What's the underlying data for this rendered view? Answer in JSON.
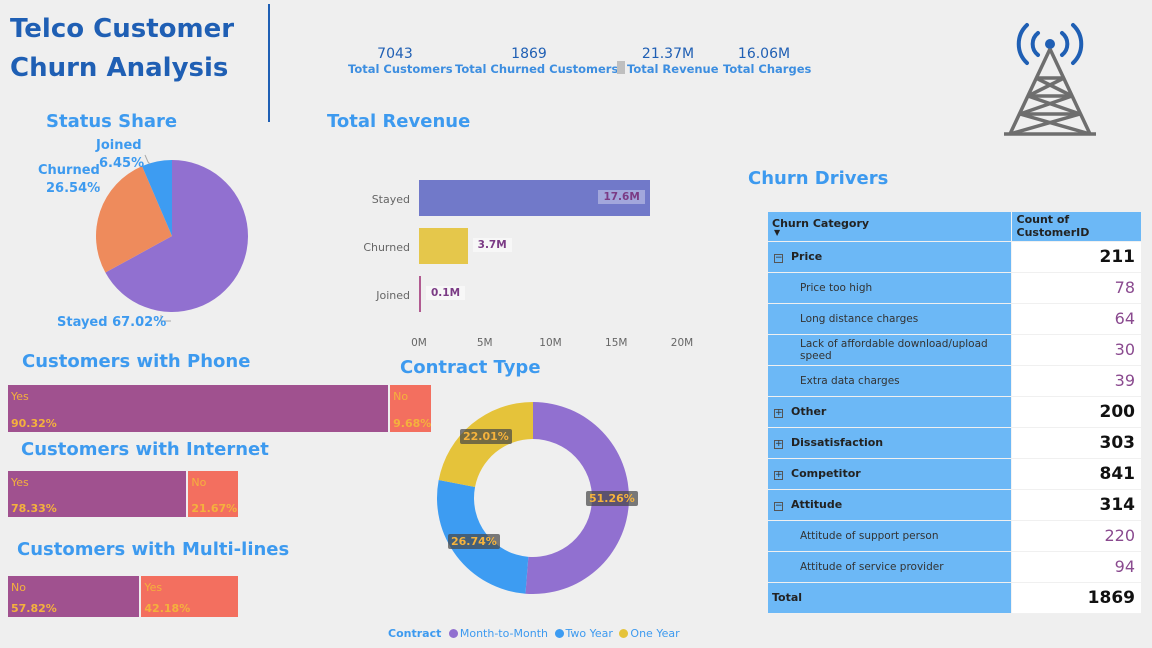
{
  "header": {
    "title_line1": "Telco Customer",
    "title_line2": "Churn Analysis",
    "icon": "cell-tower-icon"
  },
  "kpis": [
    {
      "value": "7043",
      "label": "Total Customers"
    },
    {
      "value": "1869",
      "label": "Total Churned Customers"
    },
    {
      "value": "21.37M",
      "label": "Total Revenue"
    },
    {
      "value": "16.06M",
      "label": "Total Charges"
    }
  ],
  "colors": {
    "purple": "#9170d0",
    "orange": "#ee8b5c",
    "blue": "#3d9cf2",
    "bar_stayed": "#7179c9",
    "bar_churned": "#e5c74b",
    "bar_joined": "#b15b91",
    "seg_major": "#a0518f",
    "seg_minor": "#f36f5f",
    "donut_month": "#9170d0",
    "donut_two": "#3d9cf2",
    "donut_one": "#e5c33a"
  },
  "status_share": {
    "title": "Status Share",
    "chart_data": {
      "type": "pie",
      "slices": [
        {
          "label": "Stayed",
          "value": 67.02,
          "display": "67.02%"
        },
        {
          "label": "Churned",
          "value": 26.54,
          "display": "26.54%"
        },
        {
          "label": "Joined",
          "value": 6.45,
          "display": "6.45%"
        }
      ]
    }
  },
  "total_revenue": {
    "title": "Total Revenue",
    "chart_data": {
      "type": "bar",
      "orientation": "horizontal",
      "categories": [
        "Stayed",
        "Churned",
        "Joined"
      ],
      "values": [
        17.6,
        3.7,
        0.1
      ],
      "value_labels": [
        "17.6M",
        "3.7M",
        "0.1M"
      ],
      "xlim": [
        0,
        20
      ],
      "xticks": [
        "0M",
        "5M",
        "10M",
        "15M",
        "20M"
      ]
    }
  },
  "phone": {
    "title": "Customers with Phone",
    "chart_data": {
      "type": "bar",
      "stacked": true,
      "segments": [
        {
          "label": "Yes",
          "value": 90.32,
          "display": "90.32%"
        },
        {
          "label": "No",
          "value": 9.68,
          "display": "9.68%"
        }
      ]
    }
  },
  "internet": {
    "title": "Customers with Internet",
    "chart_data": {
      "type": "bar",
      "stacked": true,
      "segments": [
        {
          "label": "Yes",
          "value": 78.33,
          "display": "78.33%"
        },
        {
          "label": "No",
          "value": 21.67,
          "display": "21.67%"
        }
      ]
    }
  },
  "multilines": {
    "title": "Customers with Multi-lines",
    "chart_data": {
      "type": "bar",
      "stacked": true,
      "segments": [
        {
          "label": "No",
          "value": 57.82,
          "display": "57.82%"
        },
        {
          "label": "Yes",
          "value": 42.18,
          "display": "42.18%"
        }
      ]
    }
  },
  "contract": {
    "title": "Contract Type",
    "chart_data": {
      "type": "pie",
      "donut": true,
      "slices": [
        {
          "label": "Month-to-Month",
          "value": 51.26,
          "display": "51.26%"
        },
        {
          "label": "Two Year",
          "value": 26.74,
          "display": "26.74%"
        },
        {
          "label": "One Year",
          "value": 22.01,
          "display": "22.01%"
        }
      ],
      "legend_title": "Contract",
      "legend": [
        "Month-to-Month",
        "Two Year",
        "One Year"
      ]
    }
  },
  "churn_drivers": {
    "title": "Churn Drivers",
    "chart_data": {
      "type": "table",
      "col1": "Churn Category",
      "col2": "Count of CustomerID",
      "price": {
        "label": "Price",
        "value": "211"
      },
      "price_items": [
        {
          "label": "Price too high",
          "value": "78"
        },
        {
          "label": "Long distance charges",
          "value": "64"
        },
        {
          "label": "Lack of affordable download/upload speed",
          "value": "30"
        },
        {
          "label": "Extra data charges",
          "value": "39"
        }
      ],
      "other": {
        "label": "Other",
        "value": "200"
      },
      "dissatisfaction": {
        "label": "Dissatisfaction",
        "value": "303"
      },
      "competitor": {
        "label": "Competitor",
        "value": "841"
      },
      "attitude": {
        "label": "Attitude",
        "value": "314"
      },
      "attitude_items": [
        {
          "label": "Attitude of support person",
          "value": "220"
        },
        {
          "label": "Attitude of service provider",
          "value": "94"
        }
      ],
      "total": {
        "label": "Total",
        "value": "1869"
      }
    }
  }
}
